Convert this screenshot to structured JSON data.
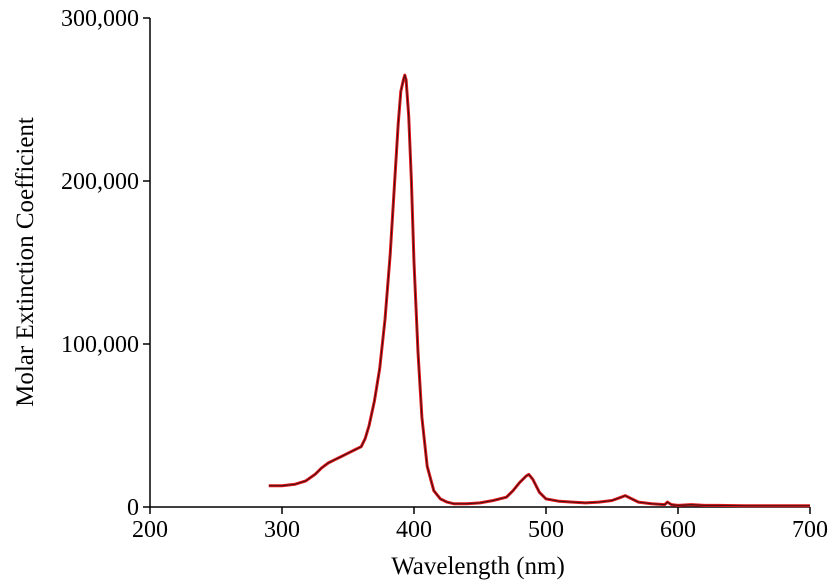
{
  "chart_data": {
    "type": "line",
    "title": "",
    "xlabel": "Wavelength (nm)",
    "ylabel": "Molar Extinction Coefficient",
    "xlim": [
      200,
      700
    ],
    "ylim": [
      0,
      300000
    ],
    "x_ticks": [
      {
        "value": 200,
        "label": "200"
      },
      {
        "value": 300,
        "label": "300"
      },
      {
        "value": 400,
        "label": "400"
      },
      {
        "value": 500,
        "label": "500"
      },
      {
        "value": 600,
        "label": "600"
      },
      {
        "value": 700,
        "label": "700"
      }
    ],
    "y_ticks": [
      {
        "value": 0,
        "label": "0"
      },
      {
        "value": 100000,
        "label": "100,000"
      },
      {
        "value": 200000,
        "label": "200,000"
      },
      {
        "value": 300000,
        "label": "300,000"
      }
    ],
    "grid": false,
    "legend": "none",
    "series": [
      {
        "color": "#e0171c",
        "x": [
          290,
          300,
          310,
          318,
          325,
          330,
          335,
          340,
          345,
          350,
          355,
          360,
          363,
          366,
          370,
          374,
          378,
          382,
          385,
          388,
          390,
          392,
          393,
          394,
          396,
          398,
          400,
          403,
          406,
          410,
          415,
          420,
          425,
          430,
          440,
          450,
          460,
          470,
          475,
          480,
          485,
          487,
          490,
          495,
          500,
          510,
          520,
          530,
          540,
          550,
          557,
          560,
          565,
          570,
          580,
          590,
          592,
          595,
          600,
          610,
          620,
          630,
          650,
          700
        ],
        "y": [
          13000,
          13000,
          14000,
          16000,
          20000,
          24000,
          27000,
          29000,
          31000,
          33000,
          35000,
          37000,
          42000,
          50000,
          65000,
          85000,
          115000,
          155000,
          195000,
          235000,
          255000,
          262000,
          265000,
          262000,
          240000,
          200000,
          150000,
          95000,
          55000,
          25000,
          10000,
          5000,
          3000,
          2000,
          2000,
          2500,
          4000,
          6000,
          10000,
          15000,
          19000,
          20000,
          17000,
          9000,
          5000,
          3500,
          3000,
          2500,
          3000,
          4000,
          6000,
          7000,
          5000,
          3000,
          2000,
          1500,
          3000,
          1500,
          1000,
          1500,
          1000,
          1000,
          800,
          800
        ]
      }
    ]
  }
}
